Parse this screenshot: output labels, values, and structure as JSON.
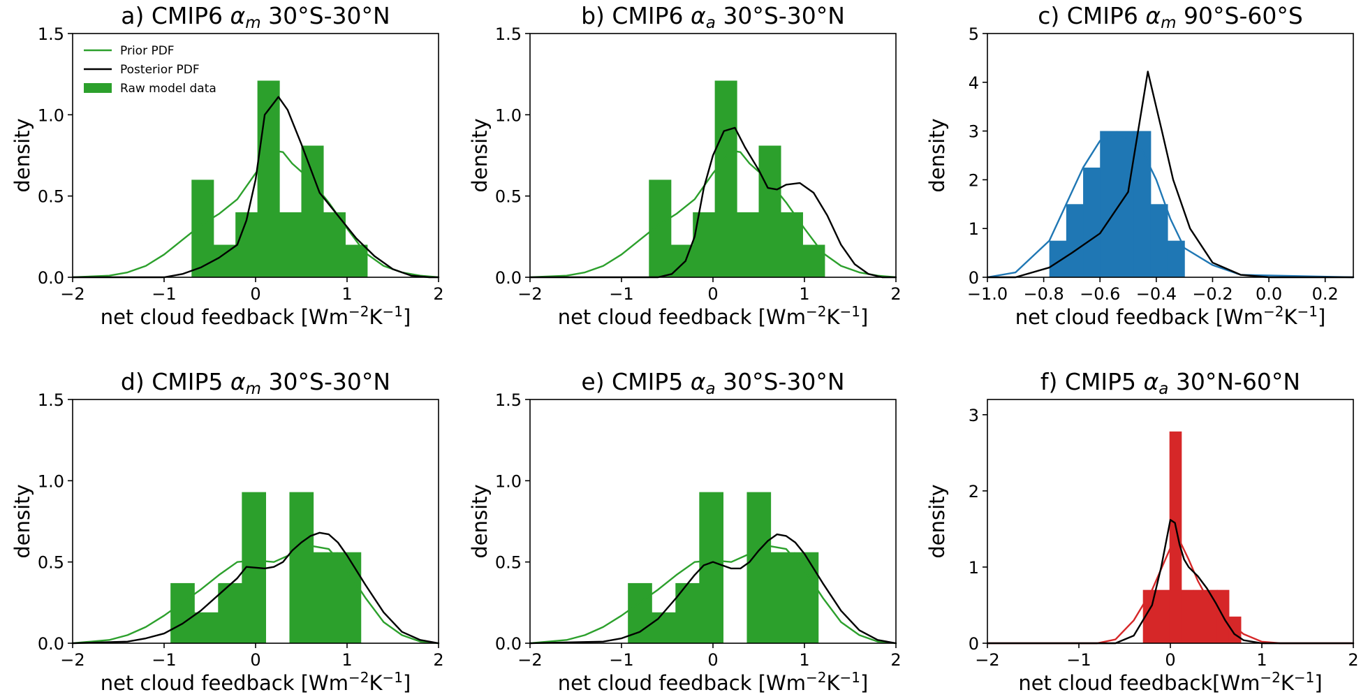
{
  "figure": {
    "legend": {
      "prior": "Prior PDF",
      "posterior": "Posterior PDF",
      "raw": "Raw model data"
    }
  },
  "chart_data": [
    {
      "id": "a",
      "type": "histogram+line",
      "title_parts": {
        "prefix": "a) CMIP6 ",
        "symbol": "α",
        "sub": "m",
        "suffix": " 30°S-30°N"
      },
      "xlabel": {
        "main": "net cloud feedback [Wm",
        "sup1": "−2",
        "mid": "K",
        "sup2": "−1",
        "end": "]"
      },
      "ylabel": "density",
      "xlim": [
        -2,
        2
      ],
      "ylim": [
        0,
        1.5
      ],
      "xticks": [
        -2,
        -1,
        0,
        1,
        2
      ],
      "xtick_labels": [
        "−2",
        "−1",
        "0",
        "1",
        "2"
      ],
      "yticks": [
        0,
        0.5,
        1.0,
        1.5
      ],
      "ytick_labels": [
        "0.0",
        "0.5",
        "1.0",
        "1.5"
      ],
      "color": "#2ca02c",
      "legend": true,
      "bins": {
        "edges": [
          -0.7,
          -0.46,
          -0.22,
          0.02,
          0.26,
          0.5,
          0.74,
          0.98,
          1.22
        ],
        "heights": [
          0.6,
          0.2,
          0.4,
          1.21,
          0.4,
          0.81,
          0.4,
          0.2
        ]
      },
      "series": [
        {
          "name": "Prior PDF",
          "color": "#2ca02c",
          "x": [
            -2,
            -1.6,
            -1.4,
            -1.2,
            -1.0,
            -0.8,
            -0.6,
            -0.4,
            -0.2,
            0,
            0.2,
            0.3,
            0.4,
            0.6,
            0.8,
            1.0,
            1.2,
            1.4,
            1.6,
            1.8,
            2.0
          ],
          "y": [
            0,
            0.01,
            0.03,
            0.07,
            0.14,
            0.23,
            0.32,
            0.39,
            0.48,
            0.64,
            0.78,
            0.77,
            0.7,
            0.6,
            0.46,
            0.3,
            0.15,
            0.07,
            0.03,
            0.01,
            0
          ]
        },
        {
          "name": "Posterior PDF",
          "color": "#000000",
          "x": [
            -2,
            -1.0,
            -0.8,
            -0.6,
            -0.4,
            -0.2,
            -0.1,
            0,
            0.1,
            0.25,
            0.35,
            0.5,
            0.7,
            0.9,
            1.1,
            1.3,
            1.5,
            1.7,
            1.9,
            2.0
          ],
          "y": [
            0,
            0,
            0.02,
            0.06,
            0.12,
            0.2,
            0.35,
            0.6,
            1.0,
            1.11,
            1.03,
            0.82,
            0.52,
            0.38,
            0.24,
            0.13,
            0.05,
            0.01,
            0,
            0
          ]
        }
      ]
    },
    {
      "id": "b",
      "type": "histogram+line",
      "title_parts": {
        "prefix": "b) CMIP6 ",
        "symbol": "α",
        "sub": "a",
        "suffix": " 30°S-30°N"
      },
      "xlabel": {
        "main": "net cloud feedback [Wm",
        "sup1": "−2",
        "mid": "K",
        "sup2": "−1",
        "end": "]"
      },
      "ylabel": "density",
      "xlim": [
        -2,
        2
      ],
      "ylim": [
        0,
        1.5
      ],
      "xticks": [
        -2,
        -1,
        0,
        1,
        2
      ],
      "xtick_labels": [
        "−2",
        "−1",
        "0",
        "1",
        "2"
      ],
      "yticks": [
        0,
        0.5,
        1.0,
        1.5
      ],
      "ytick_labels": [
        "0.0",
        "0.5",
        "1.0",
        "1.5"
      ],
      "color": "#2ca02c",
      "legend": false,
      "bins": {
        "edges": [
          -0.7,
          -0.46,
          -0.22,
          0.02,
          0.26,
          0.5,
          0.74,
          0.98,
          1.22
        ],
        "heights": [
          0.6,
          0.2,
          0.4,
          1.21,
          0.4,
          0.81,
          0.4,
          0.2
        ]
      },
      "series": [
        {
          "name": "Prior PDF",
          "color": "#2ca02c",
          "x": [
            -2,
            -1.6,
            -1.4,
            -1.2,
            -1.0,
            -0.8,
            -0.6,
            -0.4,
            -0.2,
            0,
            0.2,
            0.3,
            0.4,
            0.6,
            0.8,
            1.0,
            1.2,
            1.4,
            1.6,
            1.8,
            2.0
          ],
          "y": [
            0,
            0.01,
            0.03,
            0.07,
            0.14,
            0.23,
            0.32,
            0.39,
            0.48,
            0.64,
            0.78,
            0.77,
            0.7,
            0.6,
            0.46,
            0.3,
            0.15,
            0.07,
            0.03,
            0.01,
            0
          ]
        },
        {
          "name": "Posterior PDF",
          "color": "#000000",
          "x": [
            -2,
            -0.6,
            -0.45,
            -0.3,
            -0.2,
            -0.1,
            0,
            0.12,
            0.24,
            0.35,
            0.5,
            0.6,
            0.7,
            0.8,
            0.95,
            1.1,
            1.25,
            1.4,
            1.55,
            1.7,
            1.85,
            2.0
          ],
          "y": [
            0,
            0,
            0.02,
            0.1,
            0.25,
            0.55,
            0.75,
            0.9,
            0.92,
            0.8,
            0.66,
            0.55,
            0.54,
            0.57,
            0.58,
            0.52,
            0.38,
            0.2,
            0.08,
            0.02,
            0,
            0
          ]
        }
      ]
    },
    {
      "id": "c",
      "type": "histogram+line",
      "title_parts": {
        "prefix": "c) CMIP6 ",
        "symbol": "α",
        "sub": "m",
        "suffix": " 90°S-60°S"
      },
      "xlabel": {
        "main": "net cloud feedback [Wm",
        "sup1": "−2",
        "mid": "K",
        "sup2": "−1",
        "end": "]"
      },
      "ylabel": "density",
      "xlim": [
        -1.0,
        0.3
      ],
      "ylim": [
        0,
        5
      ],
      "xticks": [
        -1.0,
        -0.8,
        -0.6,
        -0.4,
        -0.2,
        0.0,
        0.2
      ],
      "xtick_labels": [
        "−1.0",
        "−0.8",
        "−0.6",
        "−0.4",
        "−0.2",
        "0.0",
        "0.2"
      ],
      "yticks": [
        0,
        1,
        2,
        3,
        4,
        5
      ],
      "ytick_labels": [
        "0",
        "1",
        "2",
        "3",
        "4",
        "5"
      ],
      "color": "#1f77b4",
      "legend": false,
      "bins": {
        "edges": [
          -0.78,
          -0.72,
          -0.66,
          -0.6,
          -0.54,
          -0.48,
          -0.42,
          -0.36,
          -0.3
        ],
        "heights": [
          0.75,
          1.5,
          2.25,
          3.0,
          3.0,
          3.0,
          1.5,
          0.75
        ]
      },
      "series": [
        {
          "name": "Prior PDF",
          "color": "#1f77b4",
          "x": [
            -1.0,
            -0.9,
            -0.78,
            -0.72,
            -0.66,
            -0.6,
            -0.55,
            -0.5,
            -0.45,
            -0.4,
            -0.35,
            -0.3,
            -0.2,
            -0.1,
            0.3
          ],
          "y": [
            0,
            0.1,
            0.75,
            1.5,
            2.25,
            2.8,
            2.9,
            2.85,
            2.6,
            2.0,
            1.2,
            0.6,
            0.25,
            0.05,
            0
          ]
        },
        {
          "name": "Posterior PDF",
          "color": "#000000",
          "x": [
            -1.0,
            -0.9,
            -0.78,
            -0.7,
            -0.6,
            -0.5,
            -0.43,
            -0.38,
            -0.34,
            -0.28,
            -0.2,
            -0.1,
            0,
            0.3
          ],
          "y": [
            0,
            0,
            0.2,
            0.5,
            0.9,
            1.75,
            4.22,
            3.0,
            2.0,
            1.0,
            0.3,
            0.05,
            0,
            0
          ]
        }
      ]
    },
    {
      "id": "d",
      "type": "histogram+line",
      "title_parts": {
        "prefix": "d) CMIP5 ",
        "symbol": "α",
        "sub": "m",
        "suffix": " 30°S-30°N"
      },
      "xlabel": {
        "main": "net cloud feedback [Wm",
        "sup1": "−2",
        "mid": "K",
        "sup2": "−1",
        "end": "]"
      },
      "ylabel": "density",
      "xlim": [
        -2,
        2
      ],
      "ylim": [
        0,
        1.5
      ],
      "xticks": [
        -2,
        -1,
        0,
        1,
        2
      ],
      "xtick_labels": [
        "−2",
        "−1",
        "0",
        "1",
        "2"
      ],
      "yticks": [
        0,
        0.5,
        1.0,
        1.5
      ],
      "ytick_labels": [
        "0.0",
        "0.5",
        "1.0",
        "1.5"
      ],
      "color": "#2ca02c",
      "legend": false,
      "bins": {
        "edges": [
          -0.93,
          -0.67,
          -0.41,
          -0.15,
          0.11,
          0.37,
          0.63,
          0.89,
          1.15
        ],
        "heights": [
          0.37,
          0.19,
          0.37,
          0.93,
          0,
          0.93,
          0.56,
          0.56
        ]
      },
      "series": [
        {
          "name": "Prior PDF",
          "color": "#2ca02c",
          "x": [
            -2,
            -1.6,
            -1.4,
            -1.2,
            -1.0,
            -0.8,
            -0.6,
            -0.4,
            -0.2,
            0,
            0.2,
            0.4,
            0.6,
            0.8,
            1.0,
            1.2,
            1.4,
            1.6,
            1.8,
            2.0
          ],
          "y": [
            0,
            0.02,
            0.05,
            0.1,
            0.17,
            0.25,
            0.33,
            0.42,
            0.5,
            0.51,
            0.5,
            0.55,
            0.6,
            0.58,
            0.45,
            0.28,
            0.13,
            0.05,
            0.01,
            0
          ]
        },
        {
          "name": "Posterior PDF",
          "color": "#000000",
          "x": [
            -2,
            -1.4,
            -1.2,
            -1.0,
            -0.8,
            -0.6,
            -0.4,
            -0.2,
            -0.1,
            0.1,
            0.2,
            0.3,
            0.4,
            0.5,
            0.6,
            0.7,
            0.8,
            0.9,
            1.0,
            1.2,
            1.4,
            1.6,
            1.8,
            2.0
          ],
          "y": [
            0,
            0.01,
            0.03,
            0.06,
            0.12,
            0.2,
            0.3,
            0.4,
            0.47,
            0.46,
            0.47,
            0.5,
            0.57,
            0.62,
            0.66,
            0.68,
            0.67,
            0.62,
            0.54,
            0.36,
            0.19,
            0.07,
            0.02,
            0
          ]
        }
      ]
    },
    {
      "id": "e",
      "type": "histogram+line",
      "title_parts": {
        "prefix": "e) CMIP5 ",
        "symbol": "α",
        "sub": "a",
        "suffix": " 30°S-30°N"
      },
      "xlabel": {
        "main": "net cloud feedback [Wm",
        "sup1": "−2",
        "mid": "K",
        "sup2": "−1",
        "end": "]"
      },
      "ylabel": "density",
      "xlim": [
        -2,
        2
      ],
      "ylim": [
        0,
        1.5
      ],
      "xticks": [
        -2,
        -1,
        0,
        1,
        2
      ],
      "xtick_labels": [
        "−2",
        "−1",
        "0",
        "1",
        "2"
      ],
      "yticks": [
        0,
        0.5,
        1.0,
        1.5
      ],
      "ytick_labels": [
        "0.0",
        "0.5",
        "1.0",
        "1.5"
      ],
      "color": "#2ca02c",
      "legend": false,
      "bins": {
        "edges": [
          -0.93,
          -0.67,
          -0.41,
          -0.15,
          0.11,
          0.37,
          0.63,
          0.89,
          1.15
        ],
        "heights": [
          0.37,
          0.19,
          0.37,
          0.93,
          0,
          0.93,
          0.56,
          0.56
        ]
      },
      "series": [
        {
          "name": "Prior PDF",
          "color": "#2ca02c",
          "x": [
            -2,
            -1.6,
            -1.4,
            -1.2,
            -1.0,
            -0.8,
            -0.6,
            -0.4,
            -0.2,
            0,
            0.2,
            0.4,
            0.6,
            0.8,
            1.0,
            1.2,
            1.4,
            1.6,
            1.8,
            2.0
          ],
          "y": [
            0,
            0.02,
            0.05,
            0.1,
            0.17,
            0.25,
            0.33,
            0.42,
            0.5,
            0.51,
            0.5,
            0.55,
            0.6,
            0.58,
            0.45,
            0.28,
            0.13,
            0.05,
            0.01,
            0
          ]
        },
        {
          "name": "Posterior PDF",
          "color": "#000000",
          "x": [
            -2,
            -1.2,
            -1.0,
            -0.8,
            -0.6,
            -0.4,
            -0.2,
            -0.1,
            0,
            0.1,
            0.2,
            0.3,
            0.4,
            0.5,
            0.6,
            0.7,
            0.8,
            0.9,
            1.0,
            1.2,
            1.4,
            1.6,
            1.8,
            2.0
          ],
          "y": [
            0,
            0.01,
            0.03,
            0.07,
            0.15,
            0.28,
            0.42,
            0.48,
            0.5,
            0.48,
            0.46,
            0.46,
            0.5,
            0.57,
            0.63,
            0.67,
            0.66,
            0.62,
            0.55,
            0.37,
            0.2,
            0.08,
            0.02,
            0
          ]
        }
      ]
    },
    {
      "id": "f",
      "type": "histogram+line",
      "title_parts": {
        "prefix": "f) CMIP5 ",
        "symbol": "α",
        "sub": "a",
        "suffix": " 30°N-60°N"
      },
      "xlabel": {
        "main": "net cloud feedback[Wm",
        "sup1": "−2",
        "mid": "K",
        "sup2": "−1",
        "end": "]"
      },
      "ylabel": "density",
      "xlim": [
        -2,
        2
      ],
      "ylim": [
        0,
        3.2
      ],
      "xticks": [
        -2,
        -1,
        0,
        1,
        2
      ],
      "xtick_labels": [
        "−2",
        "−1",
        "0",
        "1",
        "2"
      ],
      "yticks": [
        0,
        1,
        2,
        3
      ],
      "ytick_labels": [
        "0",
        "1",
        "2",
        "3"
      ],
      "color": "#d62728",
      "legend": false,
      "bins": {
        "edges": [
          -0.3,
          -0.01,
          0.12,
          0.25,
          0.38,
          0.51,
          0.64,
          0.77
        ],
        "heights": [
          0.7,
          2.78,
          0.7,
          0.7,
          0.7,
          0.7,
          0.35
        ]
      },
      "series": [
        {
          "name": "Prior PDF",
          "color": "#d62728",
          "x": [
            -2,
            -0.8,
            -0.6,
            -0.4,
            -0.2,
            0,
            0.05,
            0.1,
            0.2,
            0.3,
            0.4,
            0.5,
            0.6,
            0.8,
            1.0,
            1.2,
            2.0
          ],
          "y": [
            0,
            0,
            0.05,
            0.3,
            0.7,
            1.25,
            1.38,
            1.35,
            1.1,
            0.82,
            0.6,
            0.45,
            0.32,
            0.12,
            0.02,
            0,
            0
          ]
        },
        {
          "name": "Posterior PDF",
          "color": "#000000",
          "x": [
            -2,
            -0.6,
            -0.4,
            -0.2,
            -0.1,
            0,
            0.05,
            0.1,
            0.15,
            0.2,
            0.3,
            0.4,
            0.5,
            0.6,
            0.7,
            0.8,
            1.0,
            2.0
          ],
          "y": [
            0,
            0,
            0.1,
            0.5,
            1.0,
            1.62,
            1.58,
            1.3,
            1.1,
            1.0,
            0.88,
            0.72,
            0.52,
            0.3,
            0.12,
            0.04,
            0,
            0
          ]
        }
      ]
    }
  ]
}
